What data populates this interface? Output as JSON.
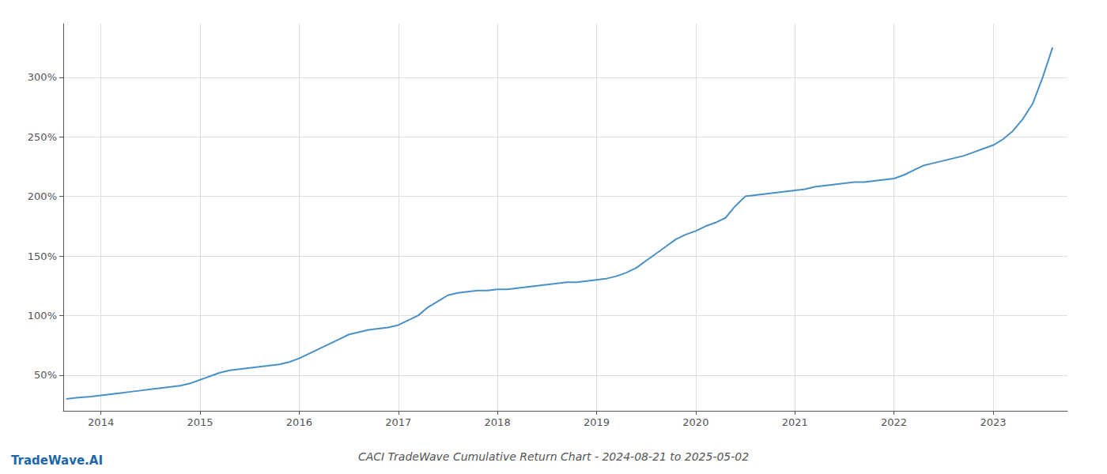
{
  "chart_data": {
    "type": "line",
    "title": "CACI TradeWave Cumulative Return Chart - 2024-08-21 to 2025-05-02",
    "annotations": [
      "TradeWave.AI"
    ],
    "color": "#4a90c4",
    "grid": true,
    "xlim": [
      2013.62,
      2023.75
    ],
    "xticks": [
      2014,
      2015,
      2016,
      2017,
      2018,
      2019,
      2020,
      2021,
      2022,
      2023
    ],
    "ylim": [
      20,
      345
    ],
    "yticks": [
      {
        "value": 50,
        "label": "50%"
      },
      {
        "value": 100,
        "label": "100%"
      },
      {
        "value": 150,
        "label": "150%"
      },
      {
        "value": 200,
        "label": "200%"
      },
      {
        "value": 250,
        "label": "250%"
      },
      {
        "value": 300,
        "label": "300%"
      }
    ],
    "x": [
      2013.65,
      2013.75,
      2013.9,
      2014.0,
      2014.1,
      2014.2,
      2014.3,
      2014.4,
      2014.5,
      2014.6,
      2014.7,
      2014.8,
      2014.9,
      2015.0,
      2015.1,
      2015.2,
      2015.3,
      2015.4,
      2015.5,
      2015.6,
      2015.7,
      2015.8,
      2015.9,
      2016.0,
      2016.1,
      2016.2,
      2016.3,
      2016.4,
      2016.5,
      2016.6,
      2016.7,
      2016.8,
      2016.9,
      2017.0,
      2017.1,
      2017.2,
      2017.3,
      2017.4,
      2017.5,
      2017.6,
      2017.7,
      2017.8,
      2017.9,
      2018.0,
      2018.1,
      2018.2,
      2018.3,
      2018.4,
      2018.5,
      2018.6,
      2018.7,
      2018.8,
      2018.9,
      2019.0,
      2019.1,
      2019.2,
      2019.3,
      2019.4,
      2019.5,
      2019.6,
      2019.7,
      2019.8,
      2019.9,
      2020.0,
      2020.1,
      2020.2,
      2020.3,
      2020.4,
      2020.5,
      2020.6,
      2020.7,
      2020.8,
      2020.9,
      2021.0,
      2021.1,
      2021.2,
      2021.3,
      2021.4,
      2021.5,
      2021.6,
      2021.7,
      2021.8,
      2021.9,
      2022.0,
      2022.1,
      2022.2,
      2022.3,
      2022.4,
      2022.5,
      2022.6,
      2022.7,
      2022.8,
      2022.9,
      2023.0,
      2023.1,
      2023.2,
      2023.3,
      2023.4,
      2023.5,
      2023.6
    ],
    "values": [
      30,
      31,
      32,
      33,
      34,
      35,
      36,
      37,
      38,
      39,
      40,
      41,
      43,
      46,
      49,
      52,
      54,
      55,
      56,
      57,
      58,
      59,
      61,
      64,
      68,
      72,
      76,
      80,
      84,
      86,
      88,
      89,
      90,
      92,
      96,
      100,
      107,
      112,
      117,
      119,
      120,
      121,
      121,
      122,
      122,
      123,
      124,
      125,
      126,
      127,
      128,
      128,
      129,
      130,
      131,
      133,
      136,
      140,
      146,
      152,
      158,
      164,
      168,
      171,
      175,
      178,
      182,
      192,
      200,
      201,
      202,
      203,
      204,
      205,
      206,
      208,
      209,
      210,
      211,
      212,
      212,
      213,
      214,
      215,
      218,
      222,
      226,
      228,
      230,
      232,
      234,
      237,
      240,
      243,
      248,
      255,
      265,
      278,
      300,
      325
    ]
  }
}
